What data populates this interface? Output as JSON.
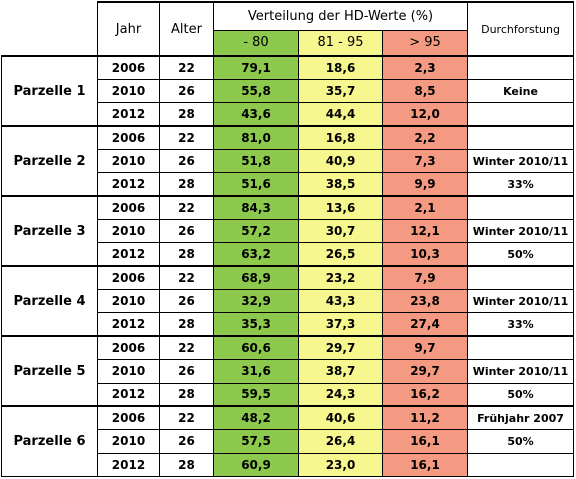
{
  "header": {
    "jahr": "Jahr",
    "alter": "Alter",
    "verteilung": "Verteilung der HD-Werte (%)",
    "durchforstung": "Durchforstung",
    "ranges": [
      "- 80",
      "81 - 95",
      "> 95"
    ]
  },
  "colors": {
    "low": "#8cc94d",
    "mid": "#f7f790",
    "high": "#f59a82"
  },
  "plots": [
    {
      "name": "Parzelle 1",
      "treatment": [
        "",
        "Keine",
        ""
      ],
      "rows": [
        {
          "jahr": "2006",
          "alter": "22",
          "low": "79,1",
          "mid": "18,6",
          "high": "2,3"
        },
        {
          "jahr": "2010",
          "alter": "26",
          "low": "55,8",
          "mid": "35,7",
          "high": "8,5"
        },
        {
          "jahr": "2012",
          "alter": "28",
          "low": "43,6",
          "mid": "44,4",
          "high": "12,0"
        }
      ]
    },
    {
      "name": "Parzelle 2",
      "treatment": [
        "",
        "Winter 2010/11",
        "33%"
      ],
      "rows": [
        {
          "jahr": "2006",
          "alter": "22",
          "low": "81,0",
          "mid": "16,8",
          "high": "2,2"
        },
        {
          "jahr": "2010",
          "alter": "26",
          "low": "51,8",
          "mid": "40,9",
          "high": "7,3"
        },
        {
          "jahr": "2012",
          "alter": "28",
          "low": "51,6",
          "mid": "38,5",
          "high": "9,9"
        }
      ]
    },
    {
      "name": "Parzelle 3",
      "treatment": [
        "",
        "Winter 2010/11",
        "50%"
      ],
      "rows": [
        {
          "jahr": "2006",
          "alter": "22",
          "low": "84,3",
          "mid": "13,6",
          "high": "2,1"
        },
        {
          "jahr": "2010",
          "alter": "26",
          "low": "57,2",
          "mid": "30,7",
          "high": "12,1"
        },
        {
          "jahr": "2012",
          "alter": "28",
          "low": "63,2",
          "mid": "26,5",
          "high": "10,3"
        }
      ]
    },
    {
      "name": "Parzelle 4",
      "treatment": [
        "",
        "Winter 2010/11",
        "33%"
      ],
      "rows": [
        {
          "jahr": "2006",
          "alter": "22",
          "low": "68,9",
          "mid": "23,2",
          "high": "7,9"
        },
        {
          "jahr": "2010",
          "alter": "26",
          "low": "32,9",
          "mid": "43,3",
          "high": "23,8"
        },
        {
          "jahr": "2012",
          "alter": "28",
          "low": "35,3",
          "mid": "37,3",
          "high": "27,4"
        }
      ]
    },
    {
      "name": "Parzelle 5",
      "treatment": [
        "",
        "Winter 2010/11",
        "50%"
      ],
      "rows": [
        {
          "jahr": "2006",
          "alter": "22",
          "low": "60,6",
          "mid": "29,7",
          "high": "9,7"
        },
        {
          "jahr": "2010",
          "alter": "26",
          "low": "31,6",
          "mid": "38,7",
          "high": "29,7"
        },
        {
          "jahr": "2012",
          "alter": "28",
          "low": "59,5",
          "mid": "24,3",
          "high": "16,2"
        }
      ]
    },
    {
      "name": "Parzelle 6",
      "treatment": [
        "Frühjahr 2007",
        "50%",
        ""
      ],
      "rows": [
        {
          "jahr": "2006",
          "alter": "22",
          "low": "48,2",
          "mid": "40,6",
          "high": "11,2"
        },
        {
          "jahr": "2010",
          "alter": "26",
          "low": "57,5",
          "mid": "26,4",
          "high": "16,1"
        },
        {
          "jahr": "2012",
          "alter": "28",
          "low": "60,9",
          "mid": "23,0",
          "high": "16,1"
        }
      ]
    }
  ]
}
